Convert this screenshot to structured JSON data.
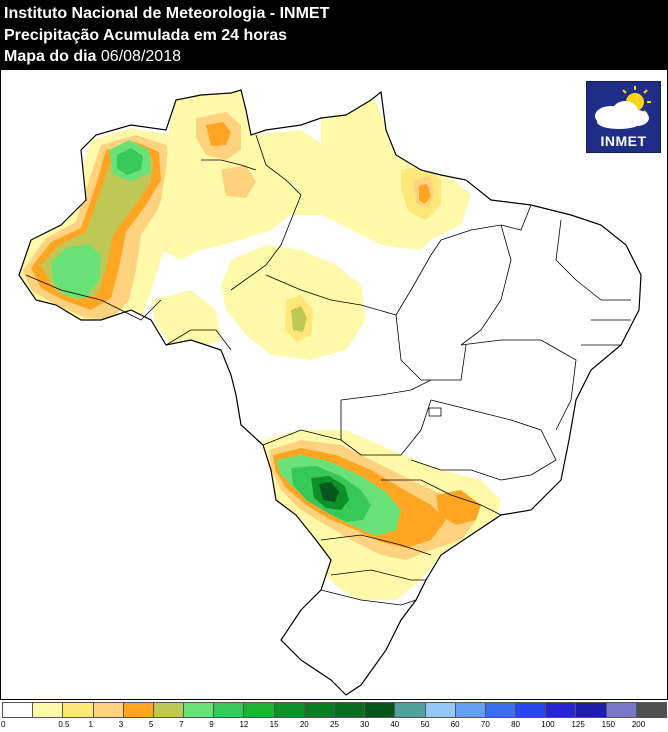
{
  "header": {
    "line1": "Instituto Nacional de Meteorologia - INMET",
    "line2": "Precipitação Acumulada em 24 horas",
    "line3_label": "Mapa do dia",
    "line3_date": "06/08/2018"
  },
  "logo": {
    "text": "INMET",
    "icon": "cloud-sun-icon"
  },
  "legend": {
    "colors": [
      "#ffffff",
      "#fffaaa",
      "#ffe878",
      "#ffd280",
      "#ffa521",
      "#c0c855",
      "#68e276",
      "#38c85a",
      "#1eb432",
      "#0e9128",
      "#0a7d23",
      "#086d1f",
      "#05561a",
      "#50a09b",
      "#96c8f5",
      "#64a0f0",
      "#3c6ef0",
      "#2846f0",
      "#2828d2",
      "#1e1eaa",
      "#7878c8",
      "#505050"
    ],
    "ticks": [
      "0",
      "0.5",
      "1",
      "3",
      "5",
      "7",
      "9",
      "12",
      "15",
      "20",
      "25",
      "30",
      "40",
      "50",
      "60",
      "70",
      "80",
      "100",
      "125",
      "150",
      "200"
    ]
  },
  "map": {
    "colors": {
      "light_yellow": "#fffaaa",
      "yellow": "#ffe878",
      "light_orange": "#ffd280",
      "orange": "#ffa521",
      "olive": "#c0c855",
      "light_green": "#68e276",
      "green": "#38c85a",
      "dark_green": "#0e9128",
      "deep_green": "#05561a",
      "border": "#000000"
    }
  }
}
